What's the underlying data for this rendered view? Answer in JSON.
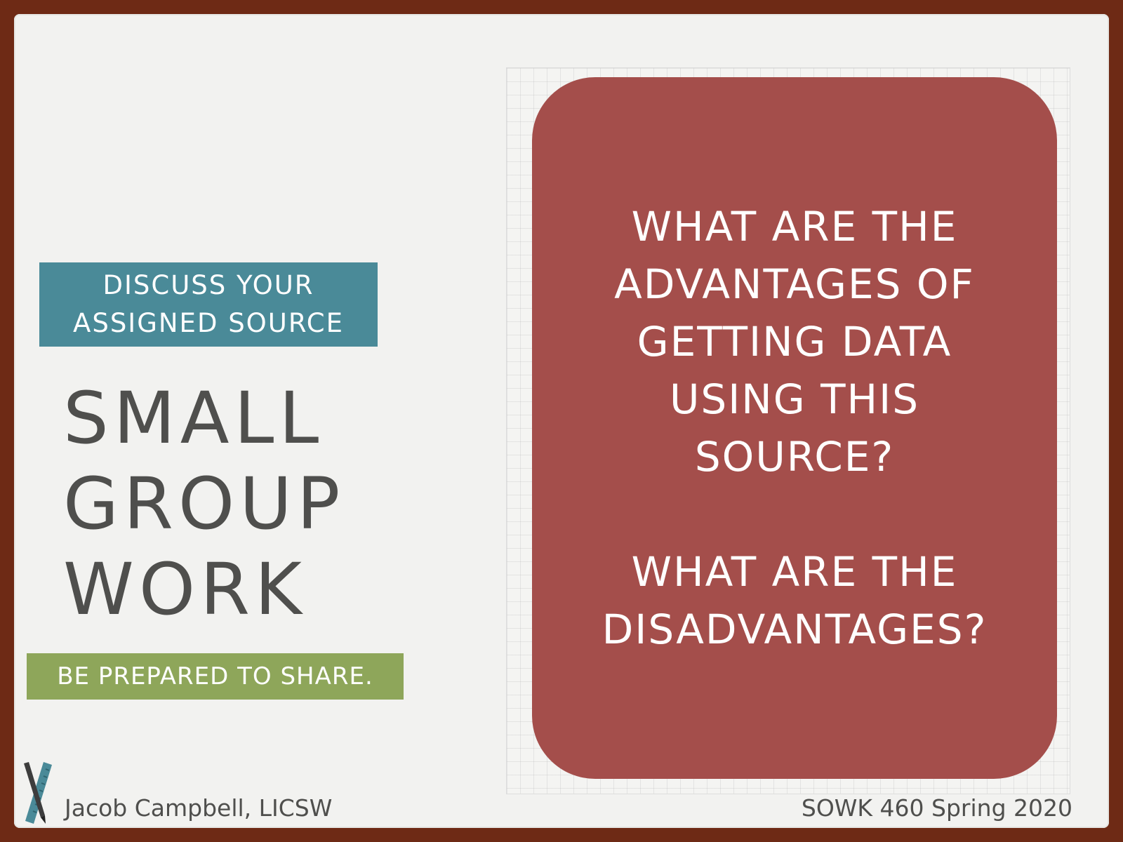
{
  "slide": {
    "subtitle": "DISCUSS YOUR\nASSIGNED SOURCE",
    "title": "SMALL\nGROUP\nWORK",
    "call_to_action": "BE PREPARED TO SHARE.",
    "question_1": "WHAT ARE THE\nADVANTAGES OF\nGETTING DATA\nUSING THIS\nSOURCE?",
    "question_2": "WHAT ARE THE\nDISADVANTAGES?"
  },
  "footer": {
    "author": "Jacob Campbell, LICSW",
    "course": "SOWK 460 Spring 2020",
    "logo_icon": "pen-and-ruler-icon"
  },
  "colors": {
    "frame": "#6e2a15",
    "background": "#f2f2f0",
    "card": "#a44e4b",
    "subtitle_bg": "#4a8a98",
    "share_bg": "#8ea65a",
    "text_dark": "#4f4f4d"
  }
}
